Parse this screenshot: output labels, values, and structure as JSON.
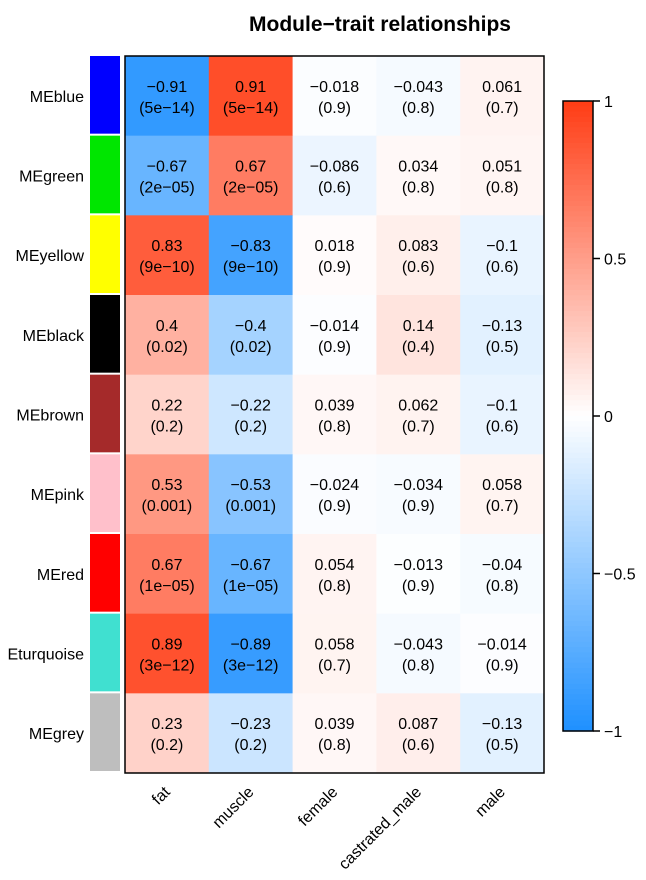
{
  "chart_data": {
    "type": "heatmap",
    "title": "Module−trait relationships",
    "rows": [
      "MEblue",
      "MEgreen",
      "MEyellow",
      "MEblack",
      "MEbrown",
      "MEpink",
      "MEred",
      "Eturquoise",
      "MEgrey"
    ],
    "row_colors": [
      "#0000ff",
      "#00e600",
      "#ffff00",
      "#000000",
      "#a52a2a",
      "#ffc0cb",
      "#ff0000",
      "#40e0d0",
      "#bebebe"
    ],
    "columns": [
      "fat",
      "muscle",
      "female",
      "castrated_male",
      "male"
    ],
    "values": [
      [
        -0.91,
        0.91,
        -0.018,
        -0.043,
        0.061
      ],
      [
        -0.67,
        0.67,
        -0.086,
        0.034,
        0.051
      ],
      [
        0.83,
        -0.83,
        0.018,
        0.083,
        -0.1
      ],
      [
        0.4,
        -0.4,
        -0.014,
        0.14,
        -0.13
      ],
      [
        0.22,
        -0.22,
        0.039,
        0.062,
        -0.1
      ],
      [
        0.53,
        -0.53,
        -0.024,
        -0.034,
        0.058
      ],
      [
        0.67,
        -0.67,
        0.054,
        -0.013,
        -0.04
      ],
      [
        0.89,
        -0.89,
        0.058,
        -0.043,
        -0.014
      ],
      [
        0.23,
        -0.23,
        0.039,
        0.087,
        -0.13
      ]
    ],
    "pvalues": [
      [
        "(5e−14)",
        "(5e−14)",
        "(0.9)",
        "(0.8)",
        "(0.7)"
      ],
      [
        "(2e−05)",
        "(2e−05)",
        "(0.6)",
        "(0.8)",
        "(0.8)"
      ],
      [
        "(9e−10)",
        "(9e−10)",
        "(0.9)",
        "(0.6)",
        "(0.6)"
      ],
      [
        "(0.02)",
        "(0.02)",
        "(0.9)",
        "(0.4)",
        "(0.5)"
      ],
      [
        "(0.2)",
        "(0.2)",
        "(0.8)",
        "(0.7)",
        "(0.6)"
      ],
      [
        "(0.001)",
        "(0.001)",
        "(0.9)",
        "(0.9)",
        "(0.7)"
      ],
      [
        "(1e−05)",
        "(1e−05)",
        "(0.8)",
        "(0.9)",
        "(0.8)"
      ],
      [
        "(3e−12)",
        "(3e−12)",
        "(0.7)",
        "(0.8)",
        "(0.9)"
      ],
      [
        "(0.2)",
        "(0.2)",
        "(0.8)",
        "(0.6)",
        "(0.5)"
      ]
    ],
    "colorscale": {
      "min": -1,
      "max": 1,
      "low_color": "#1e90ff",
      "mid_color": "#ffffff",
      "high_color": "#ff3c14",
      "ticks": [
        1,
        0.5,
        0,
        -0.5,
        -1
      ],
      "tick_labels": [
        "1",
        "0.5",
        "0",
        "−0.5",
        "−1"
      ]
    }
  }
}
